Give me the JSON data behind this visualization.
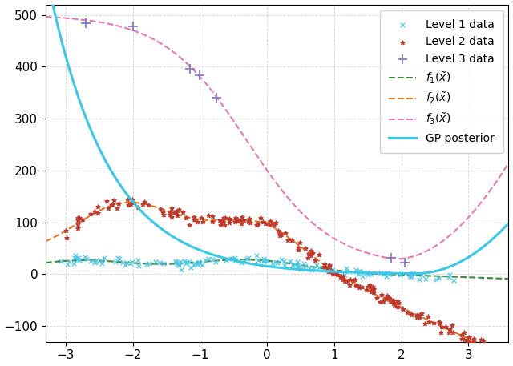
{
  "xlim": [
    -3.3,
    3.6
  ],
  "ylim": [
    -130,
    520
  ],
  "yticks": [
    -100,
    0,
    100,
    200,
    300,
    400,
    500
  ],
  "xticks": [
    -3,
    -2,
    -1,
    0,
    1,
    2,
    3
  ],
  "level1_color": "#4ec9e8",
  "level2_color": "#c0392b",
  "level3_color": "#8878cc",
  "f1_color": "#3a8a3a",
  "f2_color": "#e87820",
  "f3_color": "#e878b0",
  "gp_color": "#38c8e8",
  "legend_labels": [
    "Level 1 data",
    "Level 2 data",
    "Level 3 data",
    "$f_1(\\tilde{x})$",
    "$f_2(\\tilde{x})$",
    "$f_3(\\tilde{x})$",
    "GP posterior"
  ]
}
